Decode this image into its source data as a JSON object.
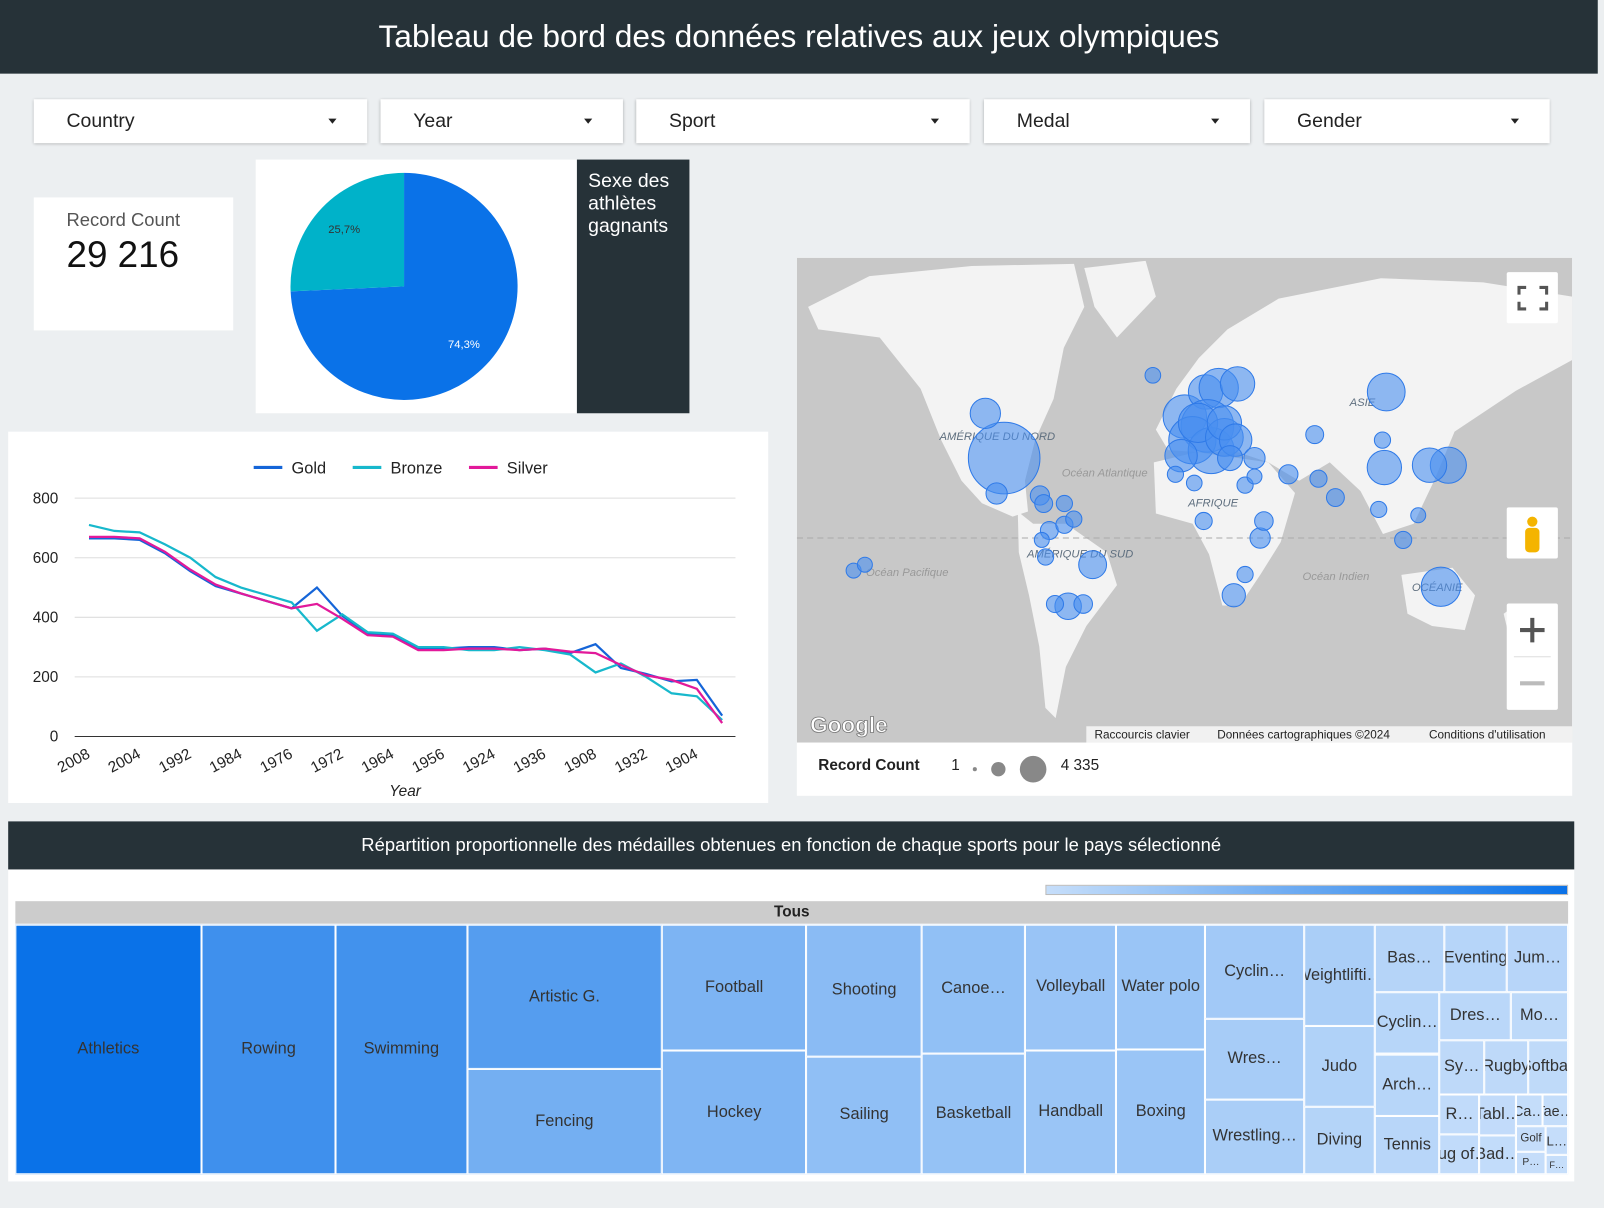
{
  "header": {
    "title": "Tableau de bord des données relatives aux jeux olympiques"
  },
  "filters": [
    "Country",
    "Year",
    "Sport",
    "Medal",
    "Gender"
  ],
  "scorecard": {
    "label": "Record Count",
    "value": "29 216"
  },
  "pie": {
    "type": "pie",
    "title": "Sexe des athlètes gagnants",
    "values": [
      74.3,
      25.7
    ],
    "value_labels": [
      "74,3%",
      "25,7%"
    ],
    "colors": [
      "#0a72e8",
      "#00b2c9"
    ]
  },
  "line_chart": {
    "type": "line",
    "categories": [
      "2008",
      null,
      "2004",
      null,
      "1992",
      null,
      "1984",
      null,
      "1976",
      null,
      "1972",
      null,
      "1964",
      null,
      "1956",
      null,
      "1924",
      null,
      "1936",
      null,
      "1908",
      null,
      "1932",
      null,
      "1904",
      null
    ],
    "series": [
      {
        "name": "Gold",
        "color": "#1565d8",
        "values": [
          665,
          665,
          660,
          615,
          555,
          505,
          480,
          455,
          430,
          500,
          405,
          345,
          340,
          295,
          295,
          300,
          300,
          290,
          295,
          280,
          310,
          230,
          210,
          185,
          190,
          70
        ]
      },
      {
        "name": "Bronze",
        "color": "#17b8cc",
        "values": [
          710,
          690,
          685,
          645,
          600,
          535,
          500,
          475,
          450,
          355,
          410,
          350,
          345,
          300,
          300,
          290,
          290,
          300,
          290,
          275,
          215,
          245,
          200,
          145,
          135,
          55
        ]
      },
      {
        "name": "Silver",
        "color": "#e2199a",
        "values": [
          670,
          670,
          665,
          620,
          560,
          510,
          480,
          455,
          430,
          445,
          395,
          340,
          335,
          290,
          290,
          295,
          295,
          290,
          295,
          285,
          280,
          240,
          205,
          190,
          160,
          45
        ]
      }
    ],
    "ylim": [
      0,
      800
    ],
    "yticks": [
      0,
      200,
      400,
      600,
      800
    ],
    "x_label": "Year",
    "grid": true
  },
  "map": {
    "type": "bubble_map",
    "labels": [
      "AMÉRIQUE DU NORD",
      "Océan Atlantique",
      "AFRIQUE",
      "ASIE",
      "AMÉRIQUE DU SUD",
      "Océan Pacifique",
      "Océan Indien",
      "OCÉANIE"
    ],
    "attribution": [
      "Raccourcis clavier",
      "Données cartographiques ©2024",
      "Conditions d'utilisation"
    ],
    "logo": "Google",
    "color": "#4a8ff0",
    "size_legend": {
      "title": "Record Count",
      "min": {
        "value": 1,
        "label": "1"
      },
      "max": {
        "value": 4335,
        "label": "4 335"
      }
    },
    "bubbles": [
      {
        "lon": -98,
        "lat": 39,
        "value": 4335
      },
      {
        "lon": -108,
        "lat": 55,
        "value": 400
      },
      {
        "lon": -102,
        "lat": 23,
        "value": 100
      },
      {
        "lon": -79,
        "lat": 22,
        "value": 60
      },
      {
        "lon": -77,
        "lat": 18,
        "value": 40
      },
      {
        "lon": -51,
        "lat": -14,
        "value": 300
      },
      {
        "lon": -64,
        "lat": -34,
        "value": 250
      },
      {
        "lon": -71,
        "lat": -33,
        "value": 30
      },
      {
        "lon": -74,
        "lat": 4,
        "value": 40
      },
      {
        "lon": -66,
        "lat": 7,
        "value": 30
      },
      {
        "lon": -76,
        "lat": -10,
        "value": 20
      },
      {
        "lon": -56,
        "lat": -33,
        "value": 50
      },
      {
        "lon": -78,
        "lat": -1,
        "value": 10
      },
      {
        "lon": -61,
        "lat": 10,
        "value": 20
      },
      {
        "lon": -66,
        "lat": 18,
        "value": 20
      },
      {
        "lon": -19,
        "lat": 65,
        "value": 15
      },
      {
        "lon": -2,
        "lat": 54,
        "value": 1200
      },
      {
        "lon": 9,
        "lat": 61,
        "value": 600
      },
      {
        "lon": 16,
        "lat": 62,
        "value": 900
      },
      {
        "lon": 26,
        "lat": 63,
        "value": 600
      },
      {
        "lon": 105,
        "lat": 61,
        "value": 800
      },
      {
        "lon": 10,
        "lat": 51,
        "value": 2000
      },
      {
        "lon": 2,
        "lat": 46,
        "value": 1500
      },
      {
        "lon": 12,
        "lat": 42,
        "value": 1400
      },
      {
        "lon": -4,
        "lat": 40,
        "value": 500
      },
      {
        "lon": 5,
        "lat": 52,
        "value": 900
      },
      {
        "lon": 19,
        "lat": 47,
        "value": 800
      },
      {
        "lon": 19,
        "lat": 52,
        "value": 600
      },
      {
        "lon": 25,
        "lat": 46,
        "value": 500
      },
      {
        "lon": 22,
        "lat": 39,
        "value": 200
      },
      {
        "lon": 35,
        "lat": 39,
        "value": 100
      },
      {
        "lon": 30,
        "lat": 27,
        "value": 20
      },
      {
        "lon": -7,
        "lat": 32,
        "value": 20
      },
      {
        "lon": 3,
        "lat": 28,
        "value": 15
      },
      {
        "lon": 8,
        "lat": 9,
        "value": 30
      },
      {
        "lon": 38,
        "lat": 0,
        "value": 80
      },
      {
        "lon": 40,
        "lat": 9,
        "value": 50
      },
      {
        "lon": 24,
        "lat": -29,
        "value": 150
      },
      {
        "lon": 30,
        "lat": -19,
        "value": 20
      },
      {
        "lon": 53,
        "lat": 32,
        "value": 60
      },
      {
        "lon": 78,
        "lat": 21,
        "value": 40
      },
      {
        "lon": 69,
        "lat": 30,
        "value": 30
      },
      {
        "lon": 104,
        "lat": 35,
        "value": 600
      },
      {
        "lon": 138,
        "lat": 36,
        "value": 700
      },
      {
        "lon": 128,
        "lat": 36,
        "value": 600
      },
      {
        "lon": 101,
        "lat": 15,
        "value": 20
      },
      {
        "lon": 114,
        "lat": -1,
        "value": 30
      },
      {
        "lon": 122,
        "lat": 12,
        "value": 10
      },
      {
        "lon": 134,
        "lat": -25,
        "value": 900
      },
      {
        "lon": 176,
        "lat": -38,
        "value": 150
      },
      {
        "lon": -178,
        "lat": -17,
        "value": 10
      },
      {
        "lon": -172,
        "lat": -14,
        "value": 10
      },
      {
        "lon": 103,
        "lat": 46,
        "value": 20
      },
      {
        "lon": 67,
        "lat": 48,
        "value": 40
      },
      {
        "lon": 35,
        "lat": 31,
        "value": 10
      }
    ]
  },
  "treemap": {
    "type": "treemap",
    "title": "Répartition proportionnelle des médailles obtenues en fonction de chaque sports pour le pays sélectionné",
    "root": "Tous",
    "color_range": [
      "#c6defa",
      "#0a72e8"
    ],
    "items": [
      {
        "name": "Athletics",
        "value": 3464
      },
      {
        "name": "Rowing",
        "value": 2502
      },
      {
        "name": "Swimming",
        "value": 2446
      },
      {
        "name": "Artistic G.",
        "value": 2100
      },
      {
        "name": "Fencing",
        "value": 1527
      },
      {
        "name": "Football",
        "value": 1361
      },
      {
        "name": "Hockey",
        "value": 1334
      },
      {
        "name": "Shooting",
        "value": 1132
      },
      {
        "name": "Sailing",
        "value": 1013
      },
      {
        "name": "Canoe…",
        "value": 1000
      },
      {
        "name": "Basketball",
        "value": 929
      },
      {
        "name": "Volleyball",
        "value": 852
      },
      {
        "name": "Handball",
        "value": 840
      },
      {
        "name": "Water polo",
        "value": 831
      },
      {
        "name": "Boxing",
        "value": 829
      },
      {
        "name": "Cyclin…",
        "value": 694
      },
      {
        "name": "Wres…",
        "value": 594
      },
      {
        "name": "Wrestling…",
        "value": 551
      },
      {
        "name": "Weightlifti…",
        "value": 536
      },
      {
        "name": "Judo",
        "value": 426
      },
      {
        "name": "Diving",
        "value": 355
      },
      {
        "name": "Bas…",
        "value": 347
      },
      {
        "name": "Eventing",
        "value": 315
      },
      {
        "name": "Jum…",
        "value": 305
      },
      {
        "name": "Cyclin…",
        "value": 302
      },
      {
        "name": "Arch…",
        "value": 300
      },
      {
        "name": "Tennis",
        "value": 282
      },
      {
        "name": "Dres…",
        "value": 257
      },
      {
        "name": "Mo…",
        "value": 205
      },
      {
        "name": "Sy…",
        "value": 180
      },
      {
        "name": "Rugby",
        "value": 180
      },
      {
        "name": "Softball",
        "value": 164
      },
      {
        "name": "R…",
        "value": 118
      },
      {
        "name": "Tug of…",
        "value": 118
      },
      {
        "name": "Tabl…",
        "value": 114
      },
      {
        "name": "Bad…",
        "value": 106
      },
      {
        "name": "Ca…",
        "value": 61
      },
      {
        "name": "Tae…",
        "value": 61
      },
      {
        "name": "Golf",
        "value": 55
      },
      {
        "name": "P…",
        "value": 49
      },
      {
        "name": "L…",
        "value": 49
      },
      {
        "name": "F…",
        "value": 32
      }
    ]
  }
}
